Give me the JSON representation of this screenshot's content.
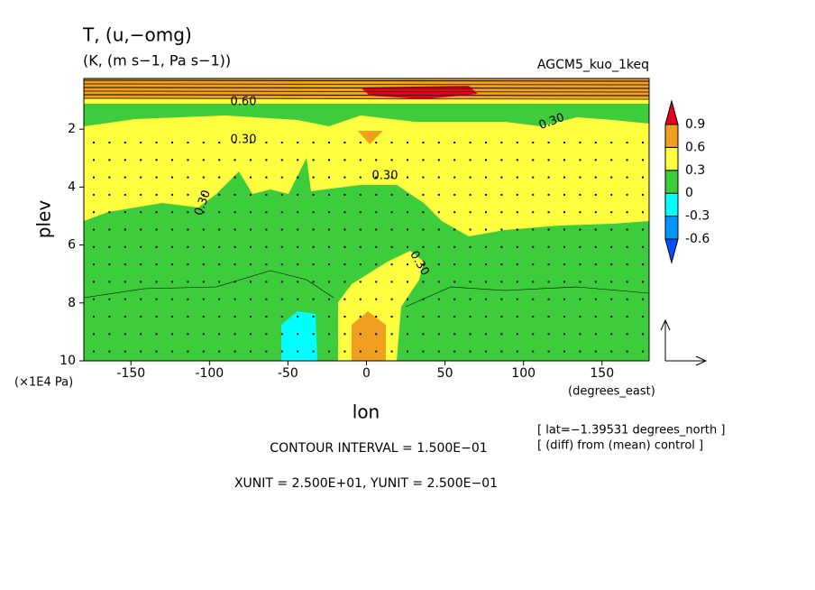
{
  "chart_data": {
    "type": "contour",
    "title": "T, (u,−omg)",
    "subtitle": "(K, (m s−1, Pa s−1))",
    "run_label": "AGCM5_kuo_1keq",
    "x_label": "lon",
    "y_label": "plev",
    "y_unit": "(×1E4 Pa)",
    "x_unit": "(degrees_east)",
    "xlim": [
      -180,
      180
    ],
    "ylim": [
      10,
      0.25
    ],
    "xticks": [
      -150,
      -100,
      -50,
      0,
      50,
      100,
      150
    ],
    "yticks": [
      2,
      4,
      6,
      8,
      10
    ],
    "colorbar": {
      "levels": [
        -0.6,
        -0.3,
        0,
        0.3,
        0.6,
        0.9
      ],
      "colors": [
        "#0050ff",
        "#0096ff",
        "#00ffff",
        "#3ccc3c",
        "#ffff40",
        "#f0a020",
        "#e8001a"
      ]
    },
    "contour_labels": [
      "0.30",
      "0.30",
      "0.30",
      "0.30",
      "0.30",
      "0.60"
    ],
    "notes": [
      "[ lat=−1.39531 degrees_north ]",
      "[ (diff) from (mean) control ]"
    ],
    "contour_interval": "CONTOUR INTERVAL = 1.500E−01",
    "units_line": "XUNIT = 2.500E+01, YUNIT = 2.500E−01"
  }
}
